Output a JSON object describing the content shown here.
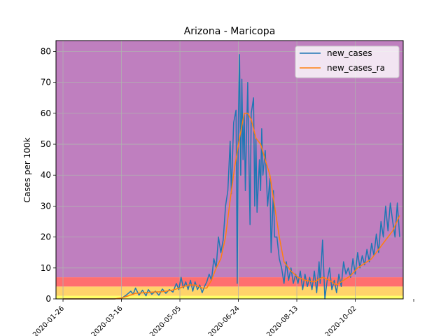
{
  "chart_data": {
    "type": "line",
    "title": "Arizona - Maricopa",
    "xlabel": "",
    "ylabel": "Cases per 100k",
    "x_start": "2020-01-20",
    "x_end": "2020-11-12",
    "ylim": [
      0,
      83.5
    ],
    "yticks": [
      0,
      10,
      20,
      30,
      40,
      50,
      60,
      70,
      80
    ],
    "xticks": [
      "2020-01-26",
      "2020-03-16",
      "2020-05-05",
      "2020-06-24",
      "2020-08-13",
      "2020-10-02",
      "2020-11-21"
    ],
    "xtick_labels": [
      "2020-01-26",
      "2020-03-16",
      "2020-05-05",
      "2020-06-24",
      "2020-08-13",
      "2020-10-02",
      ""
    ],
    "grid": true,
    "legend_position": "top-right",
    "risk_bands": [
      {
        "from": 0,
        "to": 1,
        "color": "#ffff66"
      },
      {
        "from": 1,
        "to": 4,
        "color": "#ffd36a"
      },
      {
        "from": 4,
        "to": 7,
        "color": "#ff6f6f"
      },
      {
        "from": 7,
        "to": 83.5,
        "color": "#bf7fbf"
      }
    ],
    "series": [
      {
        "name": "new_cases",
        "color": "#1f77b4",
        "points": [
          [
            "2020-01-26",
            0
          ],
          [
            "2020-03-10",
            0
          ],
          [
            "2020-03-16",
            0.2
          ],
          [
            "2020-03-20",
            1.2
          ],
          [
            "2020-03-24",
            2.5
          ],
          [
            "2020-03-26",
            1.5
          ],
          [
            "2020-03-28",
            3.5
          ],
          [
            "2020-03-31",
            1.2
          ],
          [
            "2020-04-03",
            2.8
          ],
          [
            "2020-04-06",
            1.0
          ],
          [
            "2020-04-08",
            3.0
          ],
          [
            "2020-04-11",
            1.5
          ],
          [
            "2020-04-14",
            2.5
          ],
          [
            "2020-04-17",
            1.2
          ],
          [
            "2020-04-20",
            3.2
          ],
          [
            "2020-04-23",
            1.8
          ],
          [
            "2020-04-26",
            3.0
          ],
          [
            "2020-04-29",
            2.2
          ],
          [
            "2020-05-02",
            5.0
          ],
          [
            "2020-05-04",
            3.0
          ],
          [
            "2020-05-06",
            7.0
          ],
          [
            "2020-05-08",
            3.5
          ],
          [
            "2020-05-10",
            5.5
          ],
          [
            "2020-05-12",
            3.0
          ],
          [
            "2020-05-14",
            6.0
          ],
          [
            "2020-05-16",
            2.5
          ],
          [
            "2020-05-18",
            5.5
          ],
          [
            "2020-05-20",
            3.0
          ],
          [
            "2020-05-22",
            4.5
          ],
          [
            "2020-05-24",
            2.0
          ],
          [
            "2020-05-26",
            4.0
          ],
          [
            "2020-05-28",
            5.5
          ],
          [
            "2020-05-30",
            8.0
          ],
          [
            "2020-06-01",
            6.0
          ],
          [
            "2020-06-03",
            13.0
          ],
          [
            "2020-06-05",
            10.0
          ],
          [
            "2020-06-07",
            20.0
          ],
          [
            "2020-06-09",
            15.0
          ],
          [
            "2020-06-11",
            19.0
          ],
          [
            "2020-06-13",
            30.0
          ],
          [
            "2020-06-15",
            35.0
          ],
          [
            "2020-06-17",
            51.0
          ],
          [
            "2020-06-18",
            34.0
          ],
          [
            "2020-06-20",
            57.0
          ],
          [
            "2020-06-22",
            61.0
          ],
          [
            "2020-06-23",
            5.0
          ],
          [
            "2020-06-24",
            58.0
          ],
          [
            "2020-06-25",
            79.0
          ],
          [
            "2020-06-26",
            40.0
          ],
          [
            "2020-06-27",
            71.0
          ],
          [
            "2020-06-28",
            45.0
          ],
          [
            "2020-06-29",
            60.0
          ],
          [
            "2020-06-30",
            35.0
          ],
          [
            "2020-07-02",
            70.0
          ],
          [
            "2020-07-03",
            45.0
          ],
          [
            "2020-07-04",
            24.0
          ],
          [
            "2020-07-05",
            60.0
          ],
          [
            "2020-07-07",
            65.0
          ],
          [
            "2020-07-08",
            30.0
          ],
          [
            "2020-07-09",
            52.0
          ],
          [
            "2020-07-10",
            28.0
          ],
          [
            "2020-07-12",
            45.0
          ],
          [
            "2020-07-13",
            35.0
          ],
          [
            "2020-07-14",
            55.0
          ],
          [
            "2020-07-15",
            40.0
          ],
          [
            "2020-07-17",
            48.0
          ],
          [
            "2020-07-19",
            30.0
          ],
          [
            "2020-07-21",
            39.0
          ],
          [
            "2020-07-22",
            15.0
          ],
          [
            "2020-07-24",
            35.0
          ],
          [
            "2020-07-25",
            20.0
          ],
          [
            "2020-07-27",
            20.0
          ],
          [
            "2020-07-29",
            13.0
          ],
          [
            "2020-07-31",
            10.0
          ],
          [
            "2020-08-02",
            5.0
          ],
          [
            "2020-08-04",
            12.0
          ],
          [
            "2020-08-06",
            6.0
          ],
          [
            "2020-08-08",
            10.0
          ],
          [
            "2020-08-10",
            5.0
          ],
          [
            "2020-08-12",
            8.0
          ],
          [
            "2020-08-14",
            5.0
          ],
          [
            "2020-08-16",
            9.0
          ],
          [
            "2020-08-18",
            3.0
          ],
          [
            "2020-08-20",
            8.0
          ],
          [
            "2020-08-22",
            4.0
          ],
          [
            "2020-08-24",
            7.0
          ],
          [
            "2020-08-26",
            3.0
          ],
          [
            "2020-08-28",
            9.0
          ],
          [
            "2020-08-30",
            2.0
          ],
          [
            "2020-09-01",
            12.0
          ],
          [
            "2020-09-02",
            5.0
          ],
          [
            "2020-09-04",
            19.0
          ],
          [
            "2020-09-05",
            10.0
          ],
          [
            "2020-09-06",
            0.0
          ],
          [
            "2020-09-08",
            6.0
          ],
          [
            "2020-09-10",
            10.0
          ],
          [
            "2020-09-12",
            3.0
          ],
          [
            "2020-09-14",
            6.0
          ],
          [
            "2020-09-16",
            2.0
          ],
          [
            "2020-09-18",
            8.0
          ],
          [
            "2020-09-20",
            4.0
          ],
          [
            "2020-09-22",
            12.0
          ],
          [
            "2020-09-24",
            8.0
          ],
          [
            "2020-09-26",
            10.0
          ],
          [
            "2020-09-28",
            7.0
          ],
          [
            "2020-09-30",
            13.0
          ],
          [
            "2020-10-02",
            8.0
          ],
          [
            "2020-10-04",
            15.0
          ],
          [
            "2020-10-06",
            10.0
          ],
          [
            "2020-10-08",
            14.0
          ],
          [
            "2020-10-10",
            11.0
          ],
          [
            "2020-10-12",
            16.0
          ],
          [
            "2020-10-14",
            12.0
          ],
          [
            "2020-10-16",
            18.0
          ],
          [
            "2020-10-18",
            14.0
          ],
          [
            "2020-10-20",
            21.0
          ],
          [
            "2020-10-22",
            15.0
          ],
          [
            "2020-10-24",
            25.0
          ],
          [
            "2020-10-26",
            20.0
          ],
          [
            "2020-10-28",
            30.0
          ],
          [
            "2020-10-30",
            22.0
          ],
          [
            "2020-11-01",
            31.0
          ],
          [
            "2020-11-03",
            25.0
          ],
          [
            "2020-11-05",
            20.0
          ],
          [
            "2020-11-07",
            31.0
          ],
          [
            "2020-11-09",
            20.0
          ]
        ]
      },
      {
        "name": "new_cases_ra",
        "color": "#ff7f0e",
        "points": [
          [
            "2020-01-26",
            0
          ],
          [
            "2020-03-10",
            0
          ],
          [
            "2020-03-16",
            0.3
          ],
          [
            "2020-03-22",
            1.0
          ],
          [
            "2020-03-28",
            1.8
          ],
          [
            "2020-04-04",
            2.0
          ],
          [
            "2020-04-12",
            2.2
          ],
          [
            "2020-04-20",
            2.3
          ],
          [
            "2020-04-28",
            2.8
          ],
          [
            "2020-05-05",
            3.5
          ],
          [
            "2020-05-12",
            4.5
          ],
          [
            "2020-05-18",
            4.5
          ],
          [
            "2020-05-24",
            3.5
          ],
          [
            "2020-05-28",
            3.5
          ],
          [
            "2020-06-01",
            6.0
          ],
          [
            "2020-06-05",
            10.0
          ],
          [
            "2020-06-09",
            13.0
          ],
          [
            "2020-06-13",
            20.0
          ],
          [
            "2020-06-17",
            32.0
          ],
          [
            "2020-06-21",
            43.0
          ],
          [
            "2020-06-25",
            52.0
          ],
          [
            "2020-06-29",
            60.0
          ],
          [
            "2020-07-02",
            60.0
          ],
          [
            "2020-07-05",
            58.0
          ],
          [
            "2020-07-09",
            52.0
          ],
          [
            "2020-07-13",
            50.0
          ],
          [
            "2020-07-17",
            45.0
          ],
          [
            "2020-07-21",
            40.0
          ],
          [
            "2020-07-25",
            30.0
          ],
          [
            "2020-07-29",
            20.0
          ],
          [
            "2020-08-02",
            12.0
          ],
          [
            "2020-08-08",
            9.0
          ],
          [
            "2020-08-14",
            7.0
          ],
          [
            "2020-08-20",
            6.0
          ],
          [
            "2020-08-28",
            5.5
          ],
          [
            "2020-09-04",
            7.0
          ],
          [
            "2020-09-10",
            6.0
          ],
          [
            "2020-09-16",
            4.5
          ],
          [
            "2020-09-22",
            6.0
          ],
          [
            "2020-09-28",
            7.5
          ],
          [
            "2020-10-04",
            10.0
          ],
          [
            "2020-10-10",
            11.5
          ],
          [
            "2020-10-16",
            13.0
          ],
          [
            "2020-10-22",
            16.0
          ],
          [
            "2020-10-28",
            19.0
          ],
          [
            "2020-11-03",
            22.0
          ],
          [
            "2020-11-09",
            27.0
          ]
        ]
      }
    ]
  }
}
